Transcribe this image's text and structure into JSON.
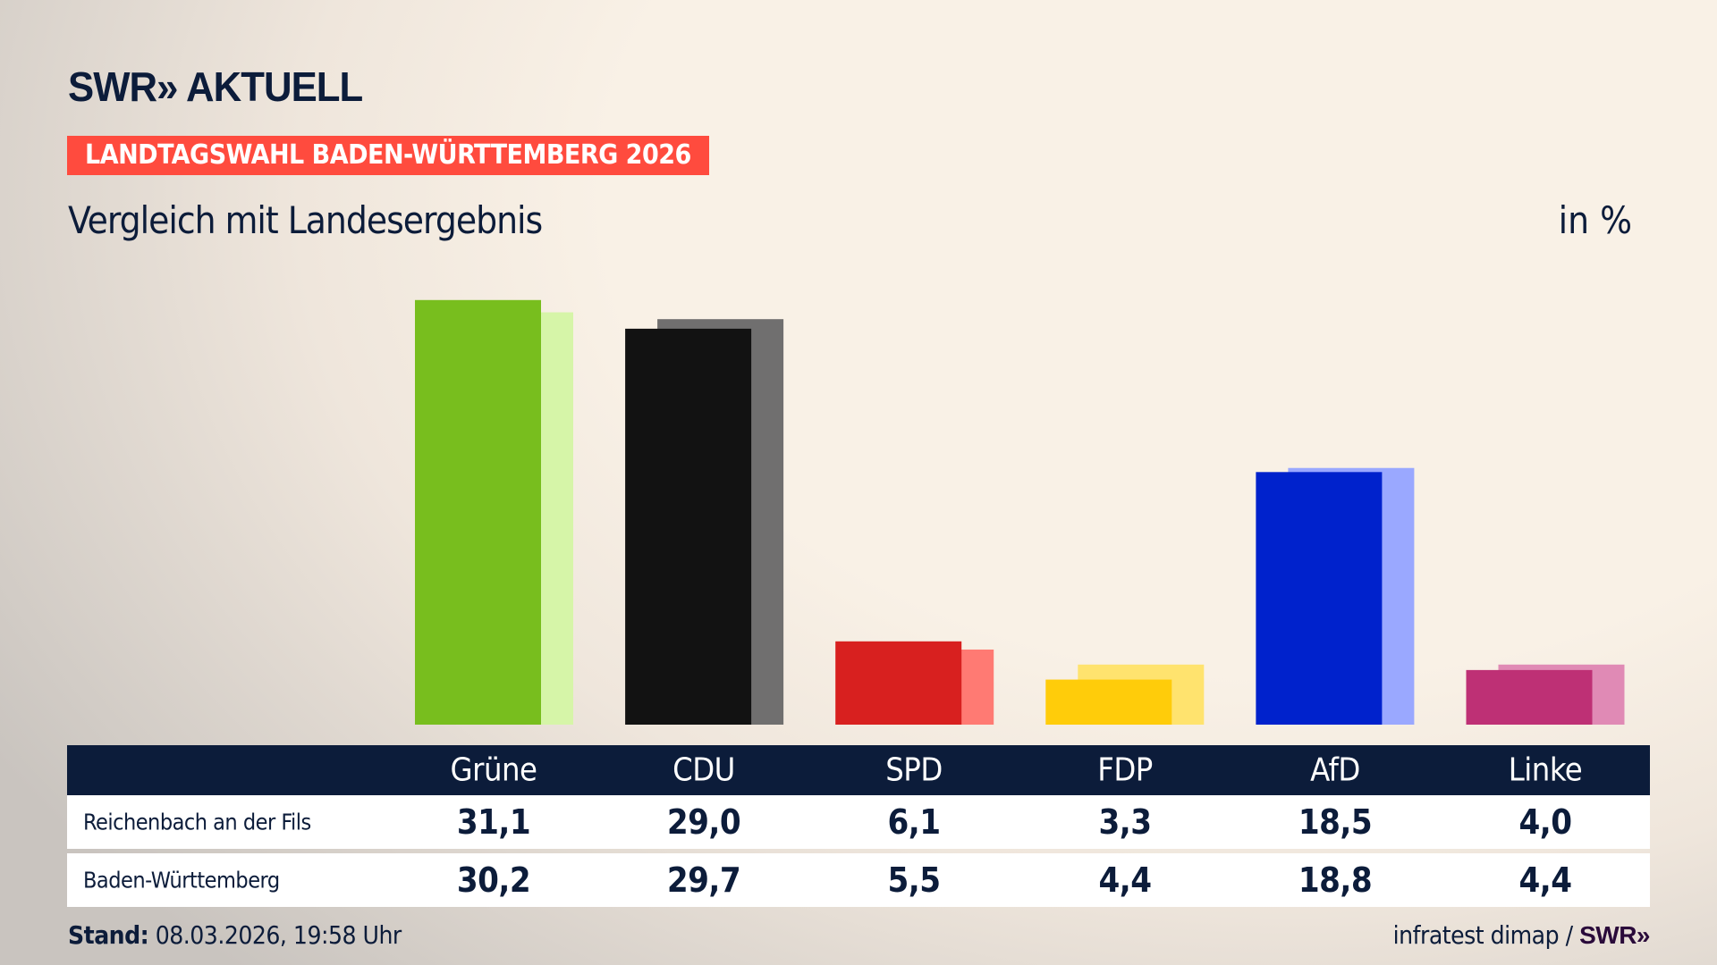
{
  "header": {
    "logo": "SWR» AKTUELL",
    "banner": "LANDTAGSWAHL BADEN-WÜRTTEMBERG 2026",
    "subtitle": "Vergleich mit Landesergebnis",
    "unit": "in %"
  },
  "chart_data": {
    "type": "bar",
    "categories": [
      "Grüne",
      "CDU",
      "SPD",
      "FDP",
      "AfD",
      "Linke"
    ],
    "series": [
      {
        "name": "Reichenbach an der Fils",
        "values": [
          31.1,
          29.0,
          6.1,
          3.3,
          18.5,
          4.0
        ],
        "display": [
          "31,1",
          "29,0",
          "6,1",
          "3,3",
          "18,5",
          "4,0"
        ]
      },
      {
        "name": "Baden-Württemberg",
        "values": [
          30.2,
          29.7,
          5.5,
          4.4,
          18.8,
          4.4
        ],
        "display": [
          "30,2",
          "29,7",
          "5,5",
          "4,4",
          "18,8",
          "4,4"
        ]
      }
    ],
    "colors": [
      "#78be1e",
      "#121212",
      "#d8201f",
      "#ffcc0a",
      "#0022cc",
      "#be3075"
    ],
    "colors_light": [
      "#d6f5a8",
      "#706f6f",
      "#ff7a73",
      "#ffe36e",
      "#9aa8ff",
      "#e08ab5"
    ],
    "ylim": [
      0,
      32
    ],
    "grid": false
  },
  "footer": {
    "stand_label": "Stand:",
    "stand_value": "08.03.2026, 19:58 Uhr",
    "source": "infratest dimap /",
    "source_logo": "SWR»"
  }
}
